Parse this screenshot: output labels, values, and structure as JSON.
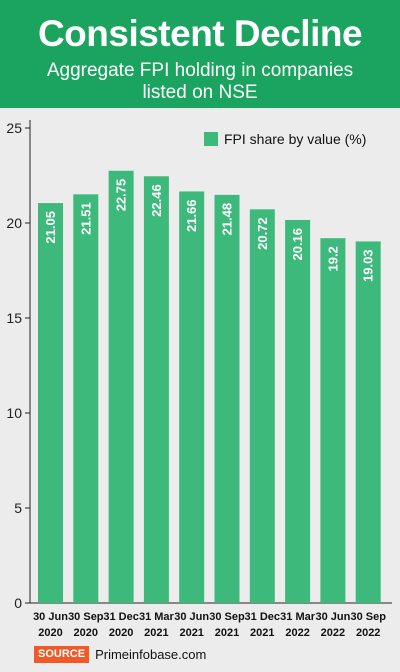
{
  "header": {
    "title": "Consistent Decline",
    "subtitle": "Aggregate FPI holding in companies listed on NSE"
  },
  "source": {
    "label": "SOURCE",
    "text": "Primeinfobase.com"
  },
  "colors": {
    "bar": "#3dba7b",
    "header_bg": "#1aa45f",
    "source_badge": "#f05a28"
  },
  "chart_data": {
    "type": "bar",
    "categories": [
      [
        "30 Jun",
        "2020"
      ],
      [
        "30 Sep",
        "2020"
      ],
      [
        "31 Dec",
        "2020"
      ],
      [
        "31 Mar",
        "2021"
      ],
      [
        "30 Jun",
        "2021"
      ],
      [
        "30 Sep",
        "2021"
      ],
      [
        "31 Dec",
        "2021"
      ],
      [
        "31 Mar",
        "2022"
      ],
      [
        "30 Jun",
        "2022"
      ],
      [
        "30 Sep",
        "2022"
      ]
    ],
    "series": [
      {
        "name": "FPI share by value (%)",
        "values": [
          21.05,
          21.51,
          22.75,
          22.46,
          21.66,
          21.48,
          20.72,
          20.16,
          19.2,
          19.03
        ],
        "labels": [
          "21.05",
          "21.51",
          "22.75",
          "22.46",
          "21.66",
          "21.48",
          "20.72",
          "20.16",
          "19.2",
          "19.03"
        ]
      }
    ],
    "yticks": [
      "0",
      "5",
      "10",
      "15",
      "20",
      "25"
    ],
    "ylim": [
      0,
      25
    ],
    "legend_position": "top-right",
    "grid": false
  }
}
